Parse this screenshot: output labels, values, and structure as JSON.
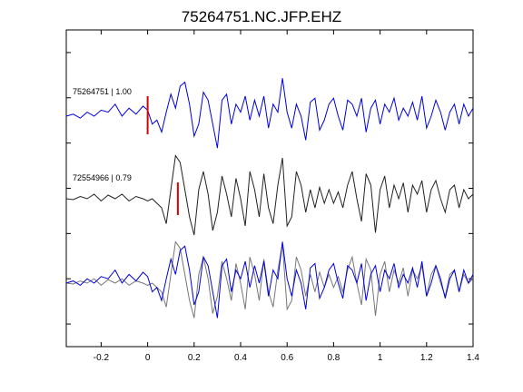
{
  "chart_data": {
    "type": "line",
    "title": "75264751.NC.JFP.EHZ",
    "xlabel": "",
    "ylabel": "",
    "xlim": [
      -0.35,
      1.4
    ],
    "xticks": [
      -0.2,
      0,
      0.2,
      0.4,
      0.6,
      0.8,
      1,
      1.2,
      1.4
    ],
    "xtick_labels": [
      "-0.2",
      "0",
      "0.2",
      "0.4",
      "0.6",
      "0.8",
      "1",
      "1.2",
      "1.4"
    ],
    "yticks_count": 7,
    "grid": false,
    "colors": {
      "primary": "#0000dd",
      "reference": "#222222",
      "overlay_reference": "#777777",
      "pick": "#dd0000"
    },
    "traces": [
      {
        "label": "75264751 | 1.00",
        "color": "#0000dd",
        "pick_x": 0.0,
        "x": [
          -0.35,
          -0.32,
          -0.29,
          -0.26,
          -0.23,
          -0.2,
          -0.17,
          -0.14,
          -0.11,
          -0.08,
          -0.05,
          -0.02,
          0.0,
          0.02,
          0.04,
          0.06,
          0.08,
          0.1,
          0.12,
          0.14,
          0.16,
          0.18,
          0.2,
          0.22,
          0.24,
          0.26,
          0.28,
          0.3,
          0.32,
          0.34,
          0.36,
          0.38,
          0.4,
          0.42,
          0.44,
          0.46,
          0.48,
          0.5,
          0.52,
          0.54,
          0.56,
          0.58,
          0.6,
          0.62,
          0.64,
          0.66,
          0.68,
          0.7,
          0.72,
          0.74,
          0.76,
          0.78,
          0.8,
          0.82,
          0.84,
          0.86,
          0.88,
          0.9,
          0.92,
          0.94,
          0.96,
          0.98,
          1.0,
          1.02,
          1.04,
          1.06,
          1.08,
          1.1,
          1.12,
          1.14,
          1.16,
          1.18,
          1.2,
          1.22,
          1.24,
          1.26,
          1.28,
          1.3,
          1.32,
          1.34,
          1.36,
          1.38,
          1.4
        ],
        "y": [
          0.0,
          0.05,
          -0.05,
          0.1,
          0.0,
          0.15,
          0.1,
          0.3,
          0.0,
          0.2,
          0.05,
          0.25,
          0.15,
          -0.2,
          -0.1,
          -0.4,
          0.1,
          0.55,
          0.2,
          0.75,
          0.85,
          0.3,
          -0.5,
          -0.2,
          0.6,
          0.4,
          -0.2,
          -0.8,
          0.4,
          0.55,
          -0.2,
          0.3,
          0.1,
          0.5,
          -0.1,
          0.4,
          0.0,
          0.5,
          -0.3,
          0.3,
          0.1,
          0.95,
          0.1,
          -0.3,
          0.3,
          0.0,
          -0.6,
          0.35,
          0.45,
          -0.35,
          -0.1,
          0.3,
          0.45,
          0.0,
          -0.35,
          0.4,
          0.3,
          0.0,
          0.45,
          -0.4,
          0.2,
          0.4,
          -0.2,
          0.3,
          0.1,
          0.45,
          -0.1,
          0.2,
          0.0,
          0.35,
          -0.1,
          0.5,
          -0.3,
          0.0,
          0.4,
          0.1,
          -0.35,
          0.1,
          0.3,
          -0.2,
          0.3,
          0.0,
          0.2
        ]
      },
      {
        "label": "72554966 | 0.79",
        "color": "#222222",
        "pick_x": 0.13,
        "x": [
          -0.35,
          -0.32,
          -0.29,
          -0.26,
          -0.23,
          -0.2,
          -0.17,
          -0.14,
          -0.11,
          -0.08,
          -0.05,
          -0.02,
          0.0,
          0.02,
          0.04,
          0.06,
          0.08,
          0.1,
          0.12,
          0.14,
          0.16,
          0.18,
          0.2,
          0.22,
          0.24,
          0.26,
          0.28,
          0.3,
          0.32,
          0.34,
          0.36,
          0.38,
          0.4,
          0.42,
          0.44,
          0.46,
          0.48,
          0.5,
          0.52,
          0.54,
          0.56,
          0.58,
          0.6,
          0.62,
          0.64,
          0.66,
          0.68,
          0.7,
          0.72,
          0.74,
          0.76,
          0.78,
          0.8,
          0.82,
          0.84,
          0.86,
          0.88,
          0.9,
          0.92,
          0.94,
          0.96,
          0.98,
          1.0,
          1.02,
          1.04,
          1.06,
          1.08,
          1.1,
          1.12,
          1.14,
          1.16,
          1.18,
          1.2,
          1.22,
          1.24,
          1.26,
          1.28,
          1.3,
          1.32,
          1.34,
          1.36,
          1.38,
          1.4
        ],
        "y": [
          0.0,
          -0.02,
          0.05,
          0.0,
          0.1,
          -0.05,
          0.08,
          0.0,
          0.1,
          -0.05,
          0.05,
          0.0,
          -0.05,
          0.0,
          -0.1,
          -0.2,
          -0.55,
          0.2,
          0.95,
          0.8,
          0.2,
          -0.4,
          -0.8,
          0.2,
          0.6,
          0.1,
          -0.7,
          -0.3,
          0.5,
          0.1,
          -0.4,
          0.45,
          0.0,
          -0.6,
          0.6,
          0.2,
          -0.4,
          0.55,
          -0.2,
          -0.55,
          0.3,
          0.9,
          -0.6,
          -0.4,
          0.6,
          0.3,
          -0.3,
          0.2,
          -0.2,
          0.25,
          -0.1,
          0.2,
          -0.1,
          0.15,
          -0.2,
          0.3,
          0.6,
          0.0,
          -0.5,
          0.55,
          0.3,
          -0.75,
          0.2,
          0.5,
          -0.2,
          0.3,
          0.0,
          0.35,
          -0.3,
          0.3,
          0.1,
          0.4,
          -0.3,
          0.2,
          0.4,
          0.0,
          -0.3,
          0.2,
          0.3,
          -0.2,
          0.2,
          0.0,
          0.1
        ]
      }
    ]
  }
}
